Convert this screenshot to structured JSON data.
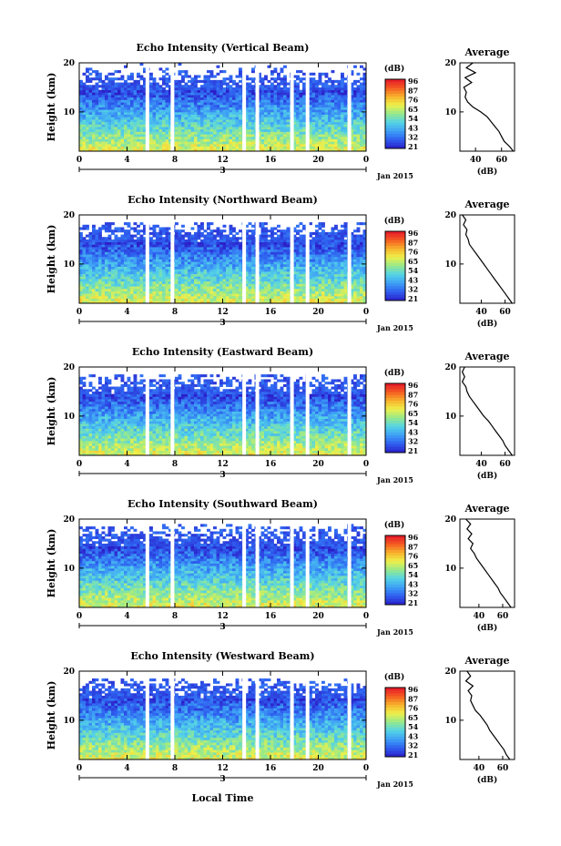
{
  "figure": {
    "x_axis_label": "Local Time",
    "y_axis_label": "Height (km)",
    "date_label": "3",
    "month_label": "Jan 2015",
    "colorbar_unit": "(dB)",
    "colorbar_ticks": [
      "96",
      "87",
      "76",
      "65",
      "54",
      "43",
      "32",
      "21"
    ],
    "avg_title": "Average",
    "avg_xlabel": "(dB)"
  },
  "chart_data": [
    {
      "type": "heatmap",
      "title": "Echo Intensity (Vertical Beam)",
      "xlabel": "Local Time",
      "ylabel": "Height (km)",
      "xlim": [
        0,
        24
      ],
      "ylim": [
        2,
        20
      ],
      "x_ticks": [
        "0",
        "4",
        "8",
        "12",
        "16",
        "20",
        "0"
      ],
      "y_ticks": [
        "10",
        "20"
      ],
      "colorbar_range": [
        21,
        96
      ],
      "gap_hours": [
        5.7,
        7.8,
        13.8,
        14.9,
        17.8,
        19.1,
        22.6
      ],
      "average_profile": {
        "xlabel": "(dB)",
        "x_ticks": [
          "40",
          "60"
        ],
        "y_ticks": [
          "10",
          "20"
        ],
        "xlim": [
          28,
          70
        ],
        "height_km": [
          2,
          3,
          4,
          5,
          6,
          7,
          8,
          9,
          10,
          11,
          12,
          13,
          14,
          15,
          16,
          17,
          18,
          19,
          20
        ],
        "intensity_db": [
          69,
          66,
          62,
          60,
          58,
          55,
          52,
          49,
          44,
          38,
          34,
          32,
          33,
          31,
          37,
          32,
          40,
          33,
          38
        ]
      }
    },
    {
      "type": "heatmap",
      "title": "Echo Intensity (Northward Beam)",
      "xlabel": "Local Time",
      "ylabel": "Height (km)",
      "xlim": [
        0,
        24
      ],
      "ylim": [
        2,
        20
      ],
      "x_ticks": [
        "0",
        "4",
        "8",
        "12",
        "16",
        "20",
        "0"
      ],
      "y_ticks": [
        "10",
        "20"
      ],
      "colorbar_range": [
        21,
        96
      ],
      "gap_hours": [
        5.7,
        7.8,
        13.8,
        14.9,
        17.8,
        19.1,
        22.6
      ],
      "average_profile": {
        "xlabel": "(dB)",
        "x_ticks": [
          "40",
          "60"
        ],
        "y_ticks": [
          "10",
          "20"
        ],
        "xlim": [
          22,
          68
        ],
        "height_km": [
          2,
          3,
          4,
          5,
          6,
          7,
          8,
          9,
          10,
          11,
          12,
          13,
          14,
          15,
          16,
          17,
          18,
          19,
          20
        ],
        "intensity_db": [
          66,
          63,
          60,
          57,
          54,
          51,
          48,
          45,
          42,
          39,
          36,
          33,
          30,
          29,
          27,
          28,
          25,
          27,
          24
        ]
      }
    },
    {
      "type": "heatmap",
      "title": "Echo Intensity (Eastward Beam)",
      "xlabel": "Local Time",
      "ylabel": "Height (km)",
      "xlim": [
        0,
        24
      ],
      "ylim": [
        2,
        20
      ],
      "x_ticks": [
        "0",
        "4",
        "8",
        "12",
        "16",
        "20",
        "0"
      ],
      "y_ticks": [
        "10",
        "20"
      ],
      "colorbar_range": [
        21,
        96
      ],
      "gap_hours": [
        5.7,
        7.8,
        13.8,
        14.9,
        17.8,
        19.1,
        22.6
      ],
      "average_profile": {
        "xlabel": "(dB)",
        "x_ticks": [
          "40",
          "60"
        ],
        "y_ticks": [
          "10",
          "20"
        ],
        "xlim": [
          22,
          68
        ],
        "height_km": [
          2,
          3,
          4,
          5,
          6,
          7,
          8,
          9,
          10,
          11,
          12,
          13,
          14,
          15,
          16,
          17,
          18,
          19,
          20
        ],
        "intensity_db": [
          66,
          63,
          60,
          58,
          55,
          52,
          49,
          46,
          42,
          39,
          36,
          33,
          30,
          28,
          27,
          24,
          26,
          24,
          26
        ]
      }
    },
    {
      "type": "heatmap",
      "title": "Echo Intensity (Southward Beam)",
      "xlabel": "Local Time",
      "ylabel": "Height (km)",
      "xlim": [
        0,
        24
      ],
      "ylim": [
        2,
        20
      ],
      "x_ticks": [
        "0",
        "4",
        "8",
        "12",
        "16",
        "20",
        "0"
      ],
      "y_ticks": [
        "10",
        "20"
      ],
      "colorbar_range": [
        21,
        96
      ],
      "gap_hours": [
        5.7,
        7.8,
        13.8,
        14.9,
        17.8,
        19.1,
        22.6
      ],
      "average_profile": {
        "xlabel": "(dB)",
        "x_ticks": [
          "40",
          "60"
        ],
        "y_ticks": [
          "10",
          "20"
        ],
        "xlim": [
          24,
          70
        ],
        "height_km": [
          2,
          3,
          4,
          5,
          6,
          7,
          8,
          9,
          10,
          11,
          12,
          13,
          14,
          15,
          16,
          17,
          18,
          19,
          20
        ],
        "intensity_db": [
          67,
          64,
          61,
          58,
          56,
          53,
          50,
          47,
          44,
          41,
          38,
          36,
          33,
          35,
          31,
          34,
          30,
          33,
          29
        ]
      }
    },
    {
      "type": "heatmap",
      "title": "Echo Intensity (Westward Beam)",
      "xlabel": "Local Time",
      "ylabel": "Height (km)",
      "xlim": [
        0,
        24
      ],
      "ylim": [
        2,
        20
      ],
      "x_ticks": [
        "0",
        "4",
        "8",
        "12",
        "16",
        "20",
        "0"
      ],
      "y_ticks": [
        "10",
        "20"
      ],
      "colorbar_range": [
        21,
        96
      ],
      "gap_hours": [
        5.7,
        7.8,
        13.8,
        14.9,
        17.8,
        19.1,
        22.6
      ],
      "average_profile": {
        "xlabel": "(dB)",
        "x_ticks": [
          "40",
          "60"
        ],
        "y_ticks": [
          "10",
          "20"
        ],
        "xlim": [
          24,
          70
        ],
        "height_km": [
          2,
          3,
          4,
          5,
          6,
          7,
          8,
          9,
          10,
          11,
          12,
          13,
          14,
          15,
          16,
          17,
          18,
          19,
          20
        ],
        "intensity_db": [
          66,
          63,
          61,
          58,
          55,
          52,
          49,
          47,
          44,
          41,
          37,
          35,
          33,
          34,
          31,
          35,
          29,
          33,
          30
        ]
      }
    }
  ],
  "colors": {
    "colormap": [
      "#2b1ec8",
      "#2e5ff0",
      "#3ea0f5",
      "#54d3e6",
      "#96e98c",
      "#eef04a",
      "#f7b22c",
      "#f45a21",
      "#e4152b"
    ],
    "gap": "#ffffff",
    "axis": "#000000"
  }
}
